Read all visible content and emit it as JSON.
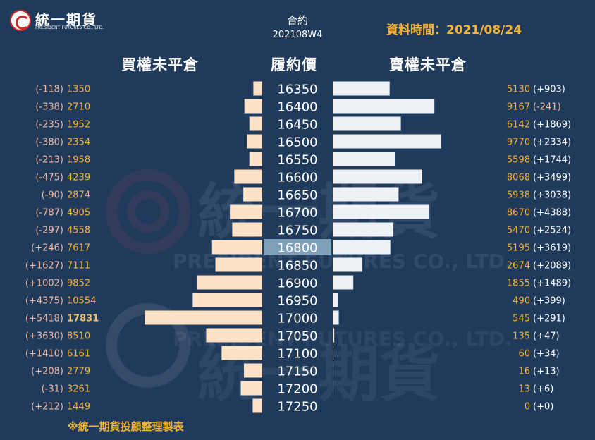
{
  "header": {
    "logo_text": "統一期貨",
    "logo_subtext": "PRESIDENT FUTURES CO., LTD.",
    "contract_label": "合約",
    "contract_week": "202108W4",
    "data_time": "資料時間：2021/08/24"
  },
  "columns": {
    "call": "買權未平倉",
    "strike": "履約價",
    "put": "賣權未平倉"
  },
  "watermark": {
    "text_cn": "統一期貨",
    "text_en": "PRESIDENT FUTURES CO., LTD."
  },
  "footnote": "※統一期貨投顧整理製表",
  "colors": {
    "background": "#203a5c",
    "call_bar": "#fde2c8",
    "put_bar": "#eef1f5",
    "number_text": "#f4b233",
    "change_text_call": "#f2b9a0",
    "strike_highlight": "#8fb3c9",
    "max_highlight": "#f4c26a"
  },
  "chart_data": {
    "type": "bar",
    "title": "",
    "categories": [
      "16350",
      "16400",
      "16450",
      "16500",
      "16550",
      "16600",
      "16650",
      "16700",
      "16750",
      "16800",
      "16850",
      "16900",
      "16950",
      "17000",
      "17050",
      "17100",
      "17150",
      "17200",
      "17250"
    ],
    "highlight_strike": "16800",
    "series": [
      {
        "name": "買權未平倉",
        "values": [
          1350,
          2710,
          1952,
          2354,
          1958,
          4239,
          2874,
          4905,
          4558,
          7617,
          7111,
          9852,
          10554,
          17831,
          8510,
          6161,
          2779,
          3261,
          1449
        ],
        "changes": [
          "(-118)",
          "(-338)",
          "(-235)",
          "(-380)",
          "(-213)",
          "(-475)",
          "(-90)",
          "(-787)",
          "(-297)",
          "(+246)",
          "(+1627)",
          "(+1002)",
          "(+4375)",
          "(+5418)",
          "(+3630)",
          "(+1410)",
          "(+208)",
          "(-31)",
          "(+212)"
        ]
      },
      {
        "name": "賣權未平倉",
        "values": [
          5130,
          9167,
          6142,
          9770,
          5598,
          8068,
          5938,
          8670,
          5470,
          5195,
          2674,
          1855,
          490,
          545,
          135,
          60,
          16,
          13,
          0
        ],
        "changes": [
          "(+903)",
          "(-241)",
          "(+1869)",
          "(+2334)",
          "(+1744)",
          "(+3499)",
          "(+3038)",
          "(+4388)",
          "(+2524)",
          "(+3619)",
          "(+2089)",
          "(+1489)",
          "(+399)",
          "(+291)",
          "(+47)",
          "(+34)",
          "(+13)",
          "(+6)",
          "(+0)"
        ]
      }
    ]
  }
}
